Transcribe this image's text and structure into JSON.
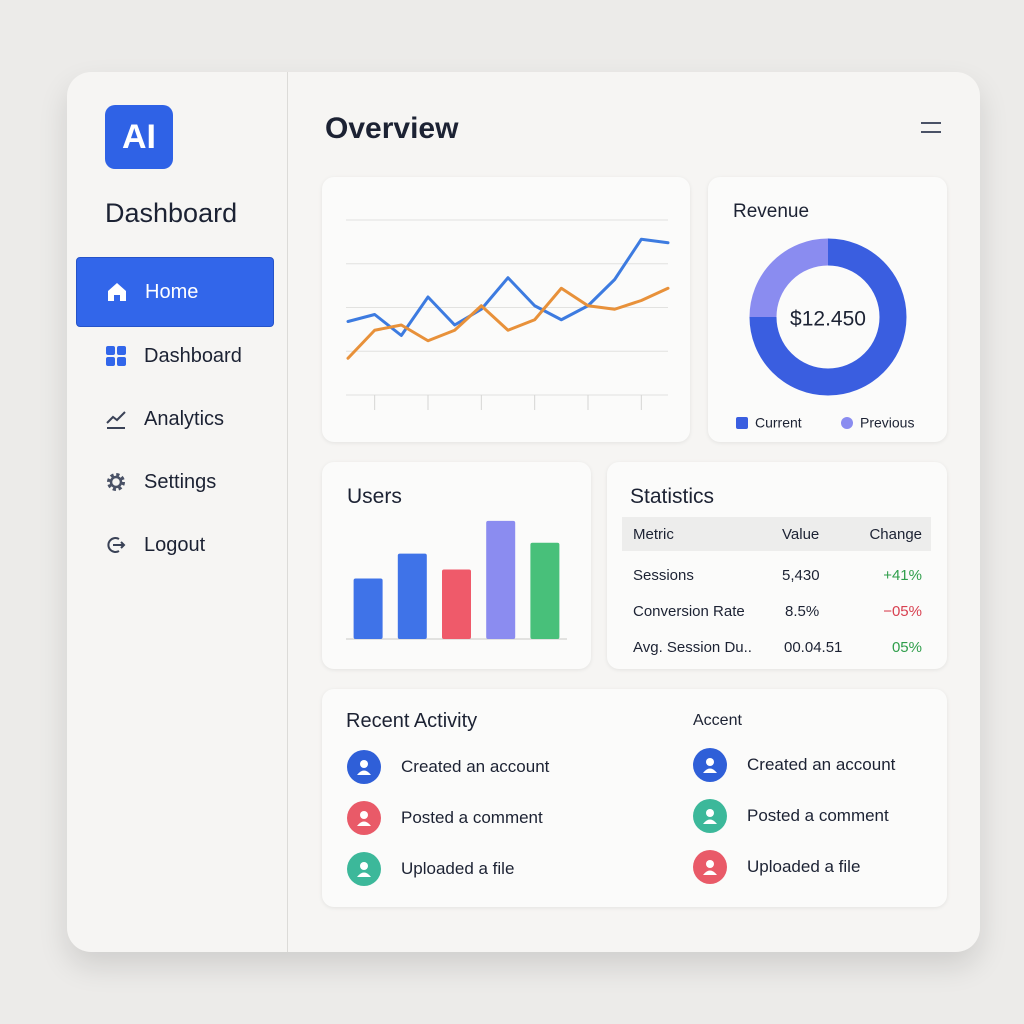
{
  "sidebar": {
    "logo": "AI",
    "title": "Dashboard",
    "nav": [
      "Home",
      "Dashboard",
      "Analytics",
      "Settings",
      "Logout"
    ]
  },
  "header": {
    "title": "Overview"
  },
  "chart_data": [
    {
      "type": "line",
      "x": [
        0,
        1,
        2,
        3,
        4,
        5,
        6,
        7,
        8,
        9,
        10,
        11,
        12
      ],
      "xlim": [
        0,
        12
      ],
      "xticks": [
        1,
        3,
        5,
        7,
        9,
        11
      ],
      "ylim": [
        0,
        100
      ],
      "yticks": [
        0,
        25,
        50,
        75,
        100
      ],
      "grid": true,
      "series": [
        {
          "color": "#3d7be0",
          "values": [
            42,
            46,
            34,
            56,
            40,
            49,
            67,
            51,
            43,
            51,
            66,
            89,
            87
          ]
        },
        {
          "color": "#e8913a",
          "values": [
            21,
            37,
            40,
            31,
            37,
            51,
            37,
            43,
            61,
            51,
            49,
            54,
            61
          ]
        }
      ]
    },
    {
      "type": "pie",
      "title": "Revenue",
      "center_label": "$12.450",
      "categories": [
        "Current",
        "Previous"
      ],
      "values": [
        75,
        25
      ],
      "colors": [
        "#3a5ee0",
        "#8a8cf0"
      ]
    },
    {
      "type": "bar",
      "title": "Users",
      "categories": [
        null,
        null,
        null,
        null,
        null
      ],
      "values": [
        61,
        86,
        70,
        119,
        97
      ],
      "ylim": [
        0,
        130
      ],
      "colors": [
        "#3f73e8",
        "#3f73e8",
        "#ef5a6a",
        "#8b8cf0",
        "#48c07a"
      ]
    }
  ],
  "statistics": {
    "title": "Statistics",
    "columns": [
      "Metric",
      "Value",
      "Change"
    ],
    "rows": [
      [
        "Sessions",
        "5,430",
        "+41%"
      ],
      [
        "Conversion Rate",
        "8.5%",
        "−05%"
      ],
      [
        "Avg. Session Du..",
        "00.04.51",
        "05%"
      ]
    ]
  },
  "activity": {
    "title": "Recent Activity",
    "items": [
      "Created an account",
      "Posted a comment",
      "Uploaded a file"
    ],
    "secondary_title": "Accent",
    "secondary_items": [
      "Created an account",
      "Posted a comment",
      "Uploaded a file"
    ]
  }
}
